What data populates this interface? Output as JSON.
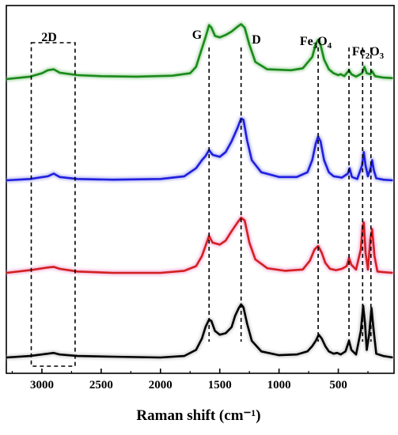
{
  "chart_data": {
    "type": "line",
    "xlabel": "Raman shift (cm⁻¹)",
    "xlim": [
      3300,
      30
    ],
    "x_reversed": true,
    "x_ticks": [
      3000,
      2500,
      2000,
      1500,
      1000,
      500
    ],
    "y_ticks_shown": false,
    "grid": false,
    "legend": "none",
    "series": [
      {
        "color": "#1a8a1a",
        "glow": "#9ad09a",
        "offset": 3.0,
        "values": [
          [
            3300,
            0.0
          ],
          [
            3100,
            0.05
          ],
          [
            3000,
            0.12
          ],
          [
            2950,
            0.18
          ],
          [
            2900,
            0.2
          ],
          [
            2850,
            0.13
          ],
          [
            2700,
            0.08
          ],
          [
            2500,
            0.06
          ],
          [
            2200,
            0.05
          ],
          [
            1900,
            0.07
          ],
          [
            1750,
            0.12
          ],
          [
            1700,
            0.25
          ],
          [
            1660,
            0.55
          ],
          [
            1620,
            0.85
          ],
          [
            1590,
            1.1
          ],
          [
            1570,
            1.05
          ],
          [
            1540,
            0.88
          ],
          [
            1500,
            0.85
          ],
          [
            1450,
            0.9
          ],
          [
            1400,
            0.97
          ],
          [
            1350,
            1.07
          ],
          [
            1320,
            1.12
          ],
          [
            1290,
            1.05
          ],
          [
            1250,
            0.7
          ],
          [
            1200,
            0.35
          ],
          [
            1100,
            0.2
          ],
          [
            900,
            0.18
          ],
          [
            800,
            0.22
          ],
          [
            720,
            0.45
          ],
          [
            690,
            0.72
          ],
          [
            670,
            0.8
          ],
          [
            650,
            0.7
          ],
          [
            620,
            0.4
          ],
          [
            580,
            0.2
          ],
          [
            540,
            0.12
          ],
          [
            500,
            0.08
          ],
          [
            480,
            0.1
          ],
          [
            450,
            0.06
          ],
          [
            410,
            0.18
          ],
          [
            390,
            0.1
          ],
          [
            350,
            0.05
          ],
          [
            300,
            0.12
          ],
          [
            280,
            0.25
          ],
          [
            260,
            0.12
          ],
          [
            230,
            0.1
          ],
          [
            215,
            0.16
          ],
          [
            190,
            0.06
          ],
          [
            120,
            0.03
          ],
          [
            40,
            0.02
          ]
        ]
      },
      {
        "color": "#1f1fe0",
        "glow": "#a0a0ee",
        "offset": 2.0,
        "values": [
          [
            3300,
            0.0
          ],
          [
            3100,
            0.02
          ],
          [
            2950,
            0.06
          ],
          [
            2900,
            0.1
          ],
          [
            2850,
            0.05
          ],
          [
            2700,
            0.02
          ],
          [
            2400,
            0.01
          ],
          [
            2000,
            0.02
          ],
          [
            1800,
            0.06
          ],
          [
            1700,
            0.18
          ],
          [
            1650,
            0.3
          ],
          [
            1620,
            0.36
          ],
          [
            1590,
            0.45
          ],
          [
            1560,
            0.38
          ],
          [
            1500,
            0.35
          ],
          [
            1450,
            0.42
          ],
          [
            1400,
            0.58
          ],
          [
            1350,
            0.78
          ],
          [
            1320,
            0.92
          ],
          [
            1300,
            0.9
          ],
          [
            1270,
            0.6
          ],
          [
            1230,
            0.3
          ],
          [
            1150,
            0.12
          ],
          [
            1000,
            0.05
          ],
          [
            850,
            0.05
          ],
          [
            760,
            0.12
          ],
          [
            720,
            0.3
          ],
          [
            690,
            0.55
          ],
          [
            670,
            0.65
          ],
          [
            650,
            0.58
          ],
          [
            620,
            0.3
          ],
          [
            580,
            0.12
          ],
          [
            540,
            0.06
          ],
          [
            500,
            0.05
          ],
          [
            470,
            0.04
          ],
          [
            420,
            0.1
          ],
          [
            405,
            0.18
          ],
          [
            385,
            0.05
          ],
          [
            340,
            0.02
          ],
          [
            300,
            0.22
          ],
          [
            285,
            0.42
          ],
          [
            270,
            0.22
          ],
          [
            250,
            0.06
          ],
          [
            225,
            0.2
          ],
          [
            215,
            0.3
          ],
          [
            200,
            0.15
          ],
          [
            180,
            0.03
          ],
          [
            120,
            0.01
          ],
          [
            40,
            0.0
          ]
        ]
      },
      {
        "color": "#d42020",
        "glow": "#f0a0d0",
        "offset": 1.0,
        "values": [
          [
            3300,
            0.0
          ],
          [
            3100,
            0.04
          ],
          [
            2950,
            0.08
          ],
          [
            2900,
            0.09
          ],
          [
            2850,
            0.06
          ],
          [
            2700,
            0.02
          ],
          [
            2400,
            0.0
          ],
          [
            2000,
            0.0
          ],
          [
            1800,
            0.03
          ],
          [
            1700,
            0.1
          ],
          [
            1650,
            0.25
          ],
          [
            1620,
            0.4
          ],
          [
            1590,
            0.55
          ],
          [
            1560,
            0.45
          ],
          [
            1500,
            0.42
          ],
          [
            1450,
            0.48
          ],
          [
            1400,
            0.62
          ],
          [
            1350,
            0.75
          ],
          [
            1320,
            0.82
          ],
          [
            1290,
            0.78
          ],
          [
            1250,
            0.45
          ],
          [
            1200,
            0.2
          ],
          [
            1100,
            0.07
          ],
          [
            950,
            0.03
          ],
          [
            800,
            0.05
          ],
          [
            740,
            0.18
          ],
          [
            700,
            0.35
          ],
          [
            670,
            0.4
          ],
          [
            640,
            0.3
          ],
          [
            610,
            0.15
          ],
          [
            570,
            0.06
          ],
          [
            520,
            0.04
          ],
          [
            470,
            0.06
          ],
          [
            430,
            0.1
          ],
          [
            410,
            0.22
          ],
          [
            390,
            0.12
          ],
          [
            350,
            0.05
          ],
          [
            310,
            0.35
          ],
          [
            295,
            0.7
          ],
          [
            285,
            0.75
          ],
          [
            270,
            0.3
          ],
          [
            250,
            0.05
          ],
          [
            230,
            0.5
          ],
          [
            215,
            0.65
          ],
          [
            195,
            0.25
          ],
          [
            170,
            0.02
          ],
          [
            120,
            0.01
          ],
          [
            40,
            0.0
          ]
        ]
      },
      {
        "color": "#000000",
        "glow": "#c0c0c0",
        "offset": 0.0,
        "values": [
          [
            3300,
            0.0
          ],
          [
            3100,
            0.02
          ],
          [
            2950,
            0.05
          ],
          [
            2900,
            0.06
          ],
          [
            2850,
            0.04
          ],
          [
            2700,
            0.02
          ],
          [
            2400,
            0.01
          ],
          [
            2000,
            0.0
          ],
          [
            1800,
            0.02
          ],
          [
            1700,
            0.1
          ],
          [
            1650,
            0.25
          ],
          [
            1620,
            0.4
          ],
          [
            1590,
            0.5
          ],
          [
            1570,
            0.48
          ],
          [
            1540,
            0.35
          ],
          [
            1500,
            0.3
          ],
          [
            1450,
            0.32
          ],
          [
            1400,
            0.4
          ],
          [
            1370,
            0.55
          ],
          [
            1340,
            0.65
          ],
          [
            1320,
            0.7
          ],
          [
            1300,
            0.66
          ],
          [
            1270,
            0.45
          ],
          [
            1230,
            0.22
          ],
          [
            1150,
            0.08
          ],
          [
            1000,
            0.03
          ],
          [
            850,
            0.04
          ],
          [
            760,
            0.08
          ],
          [
            720,
            0.15
          ],
          [
            690,
            0.22
          ],
          [
            665,
            0.3
          ],
          [
            640,
            0.25
          ],
          [
            610,
            0.15
          ],
          [
            580,
            0.08
          ],
          [
            540,
            0.05
          ],
          [
            510,
            0.06
          ],
          [
            480,
            0.04
          ],
          [
            440,
            0.08
          ],
          [
            410,
            0.22
          ],
          [
            390,
            0.1
          ],
          [
            350,
            0.04
          ],
          [
            310,
            0.35
          ],
          [
            290,
            0.68
          ],
          [
            275,
            0.45
          ],
          [
            260,
            0.1
          ],
          [
            240,
            0.3
          ],
          [
            220,
            0.65
          ],
          [
            205,
            0.4
          ],
          [
            180,
            0.05
          ],
          [
            120,
            0.02
          ],
          [
            40,
            0.0
          ]
        ]
      }
    ],
    "annotations": {
      "two_d": "2D",
      "g": "G",
      "d": "D",
      "fe3o4_parts": [
        "Fe",
        "3",
        "O",
        "4"
      ],
      "fe2o3_parts": [
        "Fe",
        "2",
        "O",
        "3"
      ]
    },
    "dashed_markers": [
      1590,
      1320,
      670,
      410,
      295,
      225
    ],
    "two_d_box_range": [
      3090,
      2720
    ]
  }
}
